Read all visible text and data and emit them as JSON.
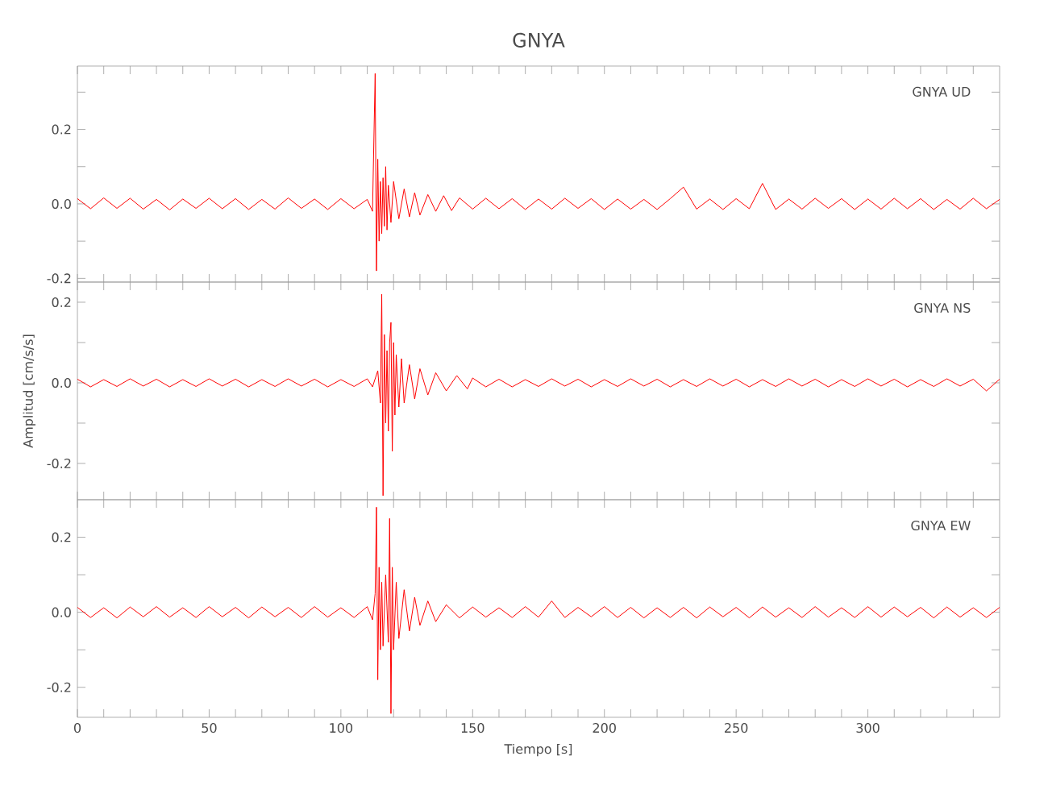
{
  "chart_data": [
    {
      "type": "line",
      "title": "GNYA",
      "annotations": [
        "GNYA   UD"
      ],
      "tick_labels": "y",
      "xlim": [
        0,
        350
      ],
      "xticks": [
        {
          "value": 0,
          "label": null
        },
        {
          "value": 10,
          "label": null
        },
        {
          "value": 20,
          "label": null
        },
        {
          "value": 30,
          "label": null
        },
        {
          "value": 40,
          "label": null
        },
        {
          "value": 50,
          "label": null
        },
        {
          "value": 60,
          "label": null
        },
        {
          "value": 70,
          "label": null
        },
        {
          "value": 80,
          "label": null
        },
        {
          "value": 90,
          "label": null
        },
        {
          "value": 100,
          "label": null
        },
        {
          "value": 110,
          "label": null
        },
        {
          "value": 120,
          "label": null
        },
        {
          "value": 130,
          "label": null
        },
        {
          "value": 140,
          "label": null
        },
        {
          "value": 150,
          "label": null
        },
        {
          "value": 160,
          "label": null
        },
        {
          "value": 170,
          "label": null
        },
        {
          "value": 180,
          "label": null
        },
        {
          "value": 190,
          "label": null
        },
        {
          "value": 200,
          "label": null
        },
        {
          "value": 210,
          "label": null
        },
        {
          "value": 220,
          "label": null
        },
        {
          "value": 230,
          "label": null
        },
        {
          "value": 240,
          "label": null
        },
        {
          "value": 250,
          "label": null
        },
        {
          "value": 260,
          "label": null
        },
        {
          "value": 270,
          "label": null
        },
        {
          "value": 280,
          "label": null
        },
        {
          "value": 290,
          "label": null
        },
        {
          "value": 300,
          "label": null
        },
        {
          "value": 310,
          "label": null
        },
        {
          "value": 320,
          "label": null
        },
        {
          "value": 330,
          "label": null
        },
        {
          "value": 340,
          "label": null
        }
      ],
      "ylim": [
        -0.21,
        0.37
      ],
      "yticks": [
        {
          "value": -0.2,
          "label": "-0.2"
        },
        {
          "value": -0.1,
          "label": null
        },
        {
          "value": 0,
          "label": "0.0"
        },
        {
          "value": 0.1,
          "label": null
        },
        {
          "value": 0.2,
          "label": "0.2"
        },
        {
          "value": 0.3,
          "label": null
        }
      ],
      "series": [
        {
          "color": "#ff0000",
          "x": [
            0,
            5,
            10,
            15,
            20,
            25,
            30,
            35,
            40,
            45,
            50,
            55,
            60,
            65,
            70,
            75,
            80,
            85,
            90,
            95,
            100,
            105,
            110,
            112,
            113,
            113.5,
            114,
            114.5,
            115,
            115.5,
            116,
            116.5,
            117,
            117.5,
            118,
            119,
            120,
            122,
            124,
            126,
            128,
            130,
            133,
            136,
            139,
            142,
            145,
            150,
            155,
            160,
            165,
            170,
            175,
            180,
            185,
            190,
            195,
            200,
            205,
            210,
            215,
            220,
            225,
            230,
            235,
            240,
            245,
            250,
            255,
            260,
            265,
            270,
            275,
            280,
            285,
            290,
            295,
            300,
            305,
            310,
            315,
            320,
            325,
            330,
            335,
            340,
            345,
            350
          ],
          "values": [
            0.014,
            -0.013,
            0.016,
            -0.012,
            0.015,
            -0.014,
            0.012,
            -0.016,
            0.013,
            -0.012,
            0.015,
            -0.013,
            0.014,
            -0.015,
            0.012,
            -0.014,
            0.016,
            -0.012,
            0.013,
            -0.015,
            0.014,
            -0.013,
            0.012,
            -0.02,
            0.35,
            -0.18,
            0.12,
            -0.1,
            0.06,
            -0.08,
            0.07,
            -0.06,
            0.1,
            -0.07,
            0.05,
            -0.05,
            0.06,
            -0.04,
            0.04,
            -0.035,
            0.03,
            -0.03,
            0.025,
            -0.02,
            0.022,
            -0.018,
            0.016,
            -0.014,
            0.015,
            -0.013,
            0.014,
            -0.015,
            0.013,
            -0.014,
            0.015,
            -0.012,
            0.014,
            -0.015,
            0.013,
            -0.014,
            0.012,
            -0.015,
            0.014,
            0.045,
            -0.014,
            0.013,
            -0.015,
            0.014,
            -0.013,
            0.055,
            -0.015,
            0.013,
            -0.014,
            0.015,
            -0.012,
            0.014,
            -0.015,
            0.013,
            -0.014,
            0.015,
            -0.013,
            0.014,
            -0.015,
            0.012,
            -0.014,
            0.015,
            -0.013,
            0.012
          ]
        }
      ]
    },
    {
      "type": "line",
      "ylabel": "Amplitud  [cm/s/s]",
      "annotations": [
        "GNYA   NS"
      ],
      "tick_labels": "y",
      "xlim": [
        0,
        350
      ],
      "xticks": [
        {
          "value": 0,
          "label": null
        },
        {
          "value": 10,
          "label": null
        },
        {
          "value": 20,
          "label": null
        },
        {
          "value": 30,
          "label": null
        },
        {
          "value": 40,
          "label": null
        },
        {
          "value": 50,
          "label": null
        },
        {
          "value": 60,
          "label": null
        },
        {
          "value": 70,
          "label": null
        },
        {
          "value": 80,
          "label": null
        },
        {
          "value": 90,
          "label": null
        },
        {
          "value": 100,
          "label": null
        },
        {
          "value": 110,
          "label": null
        },
        {
          "value": 120,
          "label": null
        },
        {
          "value": 130,
          "label": null
        },
        {
          "value": 140,
          "label": null
        },
        {
          "value": 150,
          "label": null
        },
        {
          "value": 160,
          "label": null
        },
        {
          "value": 170,
          "label": null
        },
        {
          "value": 180,
          "label": null
        },
        {
          "value": 190,
          "label": null
        },
        {
          "value": 200,
          "label": null
        },
        {
          "value": 210,
          "label": null
        },
        {
          "value": 220,
          "label": null
        },
        {
          "value": 230,
          "label": null
        },
        {
          "value": 240,
          "label": null
        },
        {
          "value": 250,
          "label": null
        },
        {
          "value": 260,
          "label": null
        },
        {
          "value": 270,
          "label": null
        },
        {
          "value": 280,
          "label": null
        },
        {
          "value": 290,
          "label": null
        },
        {
          "value": 300,
          "label": null
        },
        {
          "value": 310,
          "label": null
        },
        {
          "value": 320,
          "label": null
        },
        {
          "value": 330,
          "label": null
        },
        {
          "value": 340,
          "label": null
        }
      ],
      "ylim": [
        -0.29,
        0.25
      ],
      "yticks": [
        {
          "value": -0.2,
          "label": "-0.2"
        },
        {
          "value": -0.1,
          "label": null
        },
        {
          "value": 0,
          "label": "0.0"
        },
        {
          "value": 0.1,
          "label": null
        },
        {
          "value": 0.2,
          "label": "0.2"
        }
      ],
      "series": [
        {
          "color": "#ff0000",
          "x": [
            0,
            5,
            10,
            15,
            20,
            25,
            30,
            35,
            40,
            45,
            50,
            55,
            60,
            65,
            70,
            75,
            80,
            85,
            90,
            95,
            100,
            105,
            110,
            112,
            114,
            115,
            115.5,
            116,
            116.5,
            117,
            117.5,
            118,
            118.5,
            119,
            119.5,
            120,
            120.5,
            121,
            122,
            123,
            124,
            126,
            128,
            130,
            133,
            136,
            140,
            144,
            148,
            150,
            155,
            160,
            165,
            170,
            175,
            180,
            185,
            190,
            195,
            200,
            205,
            210,
            215,
            220,
            225,
            230,
            235,
            240,
            245,
            250,
            255,
            260,
            265,
            270,
            275,
            280,
            285,
            290,
            295,
            300,
            305,
            310,
            315,
            320,
            325,
            330,
            335,
            340,
            345,
            350
          ],
          "values": [
            0.009,
            -0.01,
            0.008,
            -0.009,
            0.01,
            -0.008,
            0.009,
            -0.01,
            0.008,
            -0.009,
            0.01,
            -0.008,
            0.009,
            -0.01,
            0.008,
            -0.009,
            0.01,
            -0.008,
            0.009,
            -0.01,
            0.008,
            -0.009,
            0.01,
            -0.01,
            0.03,
            -0.05,
            0.22,
            -0.28,
            0.12,
            -0.1,
            0.08,
            -0.12,
            0.1,
            0.15,
            -0.17,
            0.1,
            -0.08,
            0.07,
            -0.06,
            0.06,
            -0.05,
            0.045,
            -0.04,
            0.035,
            -0.03,
            0.025,
            -0.02,
            0.018,
            -0.015,
            0.012,
            -0.01,
            0.009,
            -0.01,
            0.008,
            -0.009,
            0.01,
            -0.008,
            0.009,
            -0.01,
            0.008,
            -0.009,
            0.01,
            -0.008,
            0.009,
            -0.01,
            0.008,
            -0.009,
            0.01,
            -0.008,
            0.009,
            -0.01,
            0.008,
            -0.009,
            0.01,
            -0.008,
            0.009,
            -0.01,
            0.008,
            -0.009,
            0.01,
            -0.008,
            0.009,
            -0.01,
            0.008,
            -0.009,
            0.01,
            -0.008,
            0.009,
            -0.02,
            0.009
          ]
        }
      ]
    },
    {
      "type": "line",
      "xlabel": "Tiempo  [s]",
      "annotations": [
        "GNYA   EW"
      ],
      "xlim": [
        0,
        350
      ],
      "xticks": [
        0,
        {
          "value": 10,
          "label": null
        },
        {
          "value": 20,
          "label": null
        },
        {
          "value": 30,
          "label": null
        },
        {
          "value": 40,
          "label": null
        },
        50,
        {
          "value": 60,
          "label": null
        },
        {
          "value": 70,
          "label": null
        },
        {
          "value": 80,
          "label": null
        },
        {
          "value": 90,
          "label": null
        },
        100,
        {
          "value": 110,
          "label": null
        },
        {
          "value": 120,
          "label": null
        },
        {
          "value": 130,
          "label": null
        },
        {
          "value": 140,
          "label": null
        },
        150,
        {
          "value": 160,
          "label": null
        },
        {
          "value": 170,
          "label": null
        },
        {
          "value": 180,
          "label": null
        },
        {
          "value": 190,
          "label": null
        },
        200,
        {
          "value": 210,
          "label": null
        },
        {
          "value": 220,
          "label": null
        },
        {
          "value": 230,
          "label": null
        },
        {
          "value": 240,
          "label": null
        },
        250,
        {
          "value": 260,
          "label": null
        },
        {
          "value": 270,
          "label": null
        },
        {
          "value": 280,
          "label": null
        },
        {
          "value": 290,
          "label": null
        },
        300,
        {
          "value": 310,
          "label": null
        },
        {
          "value": 320,
          "label": null
        },
        {
          "value": 330,
          "label": null
        },
        {
          "value": 340,
          "label": null
        }
      ],
      "ylim": [
        -0.28,
        0.3
      ],
      "yticks": [
        {
          "value": -0.2,
          "label": "-0.2"
        },
        {
          "value": -0.1,
          "label": null
        },
        {
          "value": 0,
          "label": "0.0"
        },
        {
          "value": 0.1,
          "label": null
        },
        {
          "value": 0.2,
          "label": "0.2"
        }
      ],
      "series": [
        {
          "color": "#ff0000",
          "x": [
            0,
            5,
            10,
            15,
            20,
            25,
            30,
            35,
            40,
            45,
            50,
            55,
            60,
            65,
            70,
            75,
            80,
            85,
            90,
            95,
            100,
            105,
            110,
            112,
            113,
            113.5,
            114,
            114.5,
            115,
            115.5,
            116,
            117,
            118,
            118.5,
            119,
            119.5,
            120,
            121,
            122,
            124,
            126,
            128,
            130,
            133,
            136,
            140,
            145,
            150,
            155,
            160,
            165,
            170,
            175,
            180,
            185,
            190,
            195,
            200,
            205,
            210,
            215,
            220,
            225,
            230,
            235,
            240,
            245,
            250,
            255,
            260,
            265,
            270,
            275,
            280,
            285,
            290,
            295,
            300,
            305,
            310,
            315,
            320,
            325,
            330,
            335,
            340,
            345,
            350
          ],
          "values": [
            0.013,
            -0.014,
            0.012,
            -0.015,
            0.014,
            -0.012,
            0.015,
            -0.013,
            0.012,
            -0.014,
            0.015,
            -0.012,
            0.013,
            -0.015,
            0.014,
            -0.012,
            0.013,
            -0.014,
            0.015,
            -0.013,
            0.012,
            -0.014,
            0.015,
            -0.02,
            0.05,
            0.28,
            -0.18,
            0.12,
            -0.1,
            0.08,
            -0.09,
            0.1,
            -0.08,
            0.25,
            -0.27,
            0.12,
            -0.1,
            0.08,
            -0.07,
            0.06,
            -0.05,
            0.04,
            -0.035,
            0.03,
            -0.025,
            0.02,
            -0.015,
            0.014,
            -0.013,
            0.012,
            -0.014,
            0.015,
            -0.013,
            0.03,
            -0.014,
            0.013,
            -0.012,
            0.015,
            -0.014,
            0.013,
            -0.015,
            0.012,
            -0.014,
            0.013,
            -0.015,
            0.014,
            -0.012,
            0.013,
            -0.015,
            0.014,
            -0.013,
            0.012,
            -0.014,
            0.015,
            -0.013,
            0.012,
            -0.014,
            0.015,
            -0.013,
            0.014,
            -0.012,
            0.013,
            -0.015,
            0.014,
            -0.013,
            0.012,
            -0.014,
            0.013
          ]
        }
      ]
    }
  ]
}
